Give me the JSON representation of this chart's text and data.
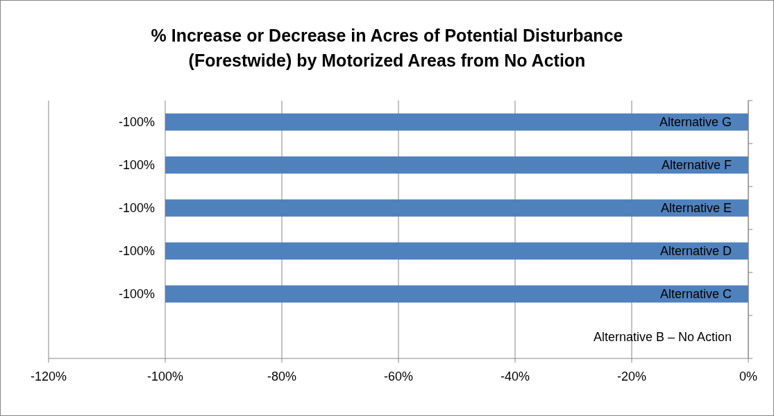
{
  "chart_data": {
    "type": "bar",
    "orientation": "horizontal",
    "title": "% Increase or Decrease in Acres of Potential Disturbance (Forestwide) by Motorized Areas from No Action",
    "categories": [
      "Alternative G",
      "Alternative F",
      "Alternative E",
      "Alternative D",
      "Alternative C",
      "Alternative B – No Action"
    ],
    "values": [
      -100,
      -100,
      -100,
      -100,
      -100,
      0
    ],
    "value_labels": [
      "-100%",
      "-100%",
      "-100%",
      "-100%",
      "-100%",
      null
    ],
    "color": "#4f81bd",
    "xlim": [
      -120,
      0
    ],
    "xticks": [
      {
        "value": -120,
        "label": "-120%"
      },
      {
        "value": -100,
        "label": "-100%"
      },
      {
        "value": -80,
        "label": "-80%"
      },
      {
        "value": -60,
        "label": "-60%"
      },
      {
        "value": -40,
        "label": "-40%"
      },
      {
        "value": -20,
        "label": "-20%"
      },
      {
        "value": 0,
        "label": "0%"
      }
    ],
    "grid": "x"
  }
}
